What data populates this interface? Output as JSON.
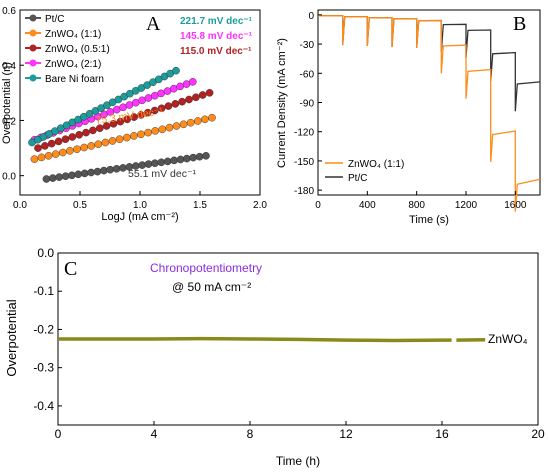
{
  "chart_data": [
    {
      "panel": "A",
      "type": "scatter",
      "title": "",
      "xlabel": "LogJ (mA cm⁻²)",
      "ylabel": "Overpotential (η)",
      "xlim": [
        0.0,
        2.0
      ],
      "ylim": [
        -0.07,
        0.6
      ],
      "xticks": [
        "0.0",
        "0.5",
        "1.0",
        "1.5",
        "2.0"
      ],
      "yticks": [
        "0.0",
        "0.2",
        "0.4",
        "0.6"
      ],
      "legend_position": "top-left",
      "series": [
        {
          "name": "Pt/C",
          "color": "#555555",
          "x_start": 0.22,
          "x_end": 1.55,
          "y_start": -0.012,
          "y_end": 0.072
        },
        {
          "name": "ZnWO₄ (1:1)",
          "color": "#ff8c1a",
          "x_start": 0.12,
          "x_end": 1.6,
          "y_start": 0.06,
          "y_end": 0.21
        },
        {
          "name": "ZnWO₄ (0.5:1)",
          "color": "#b22222",
          "x_start": 0.15,
          "x_end": 1.58,
          "y_start": 0.1,
          "y_end": 0.3
        },
        {
          "name": "ZnWO₄ (2:1)",
          "color": "#ff33ff",
          "x_start": 0.12,
          "x_end": 1.44,
          "y_start": 0.13,
          "y_end": 0.34
        },
        {
          "name": "Bare Ni foarn",
          "color": "#1e9c9c",
          "x_start": 0.1,
          "x_end": 1.3,
          "y_start": 0.12,
          "y_end": 0.38
        }
      ],
      "annotations": [
        {
          "text": "221.7 mV dec⁻¹",
          "color": "#1e9c9c"
        },
        {
          "text": "145.8 mV dec⁻¹",
          "color": "#ff33ff"
        },
        {
          "text": "115.0 mV dec⁻¹",
          "color": "#b22222"
        },
        {
          "text": "75.3 mV dec⁻¹",
          "color": "#ff8c1a"
        },
        {
          "text": "55.1 mV dec⁻¹",
          "color": "#333333"
        }
      ],
      "panel_label": "A"
    },
    {
      "panel": "B",
      "type": "line",
      "title": "",
      "xlabel": "Time (s)",
      "ylabel": "Current Density (mA cm⁻²)",
      "xlim": [
        0,
        1800
      ],
      "ylim": [
        -185,
        5
      ],
      "xticks": [
        "0",
        "400",
        "800",
        "1200",
        "1600"
      ],
      "yticks": [
        "0",
        "-30",
        "-60",
        "-90",
        "-120",
        "-150",
        "-180"
      ],
      "legend_position": "bottom-left",
      "series": [
        {
          "name": "ZnWO₄ (1:1)",
          "color": "#ff8c1a",
          "steps": [
            {
              "x0": 0,
              "x1": 200,
              "level": -1
            },
            {
              "x0": 200,
              "x1": 400,
              "level": -2
            },
            {
              "x0": 400,
              "x1": 600,
              "level": -3
            },
            {
              "x0": 600,
              "x1": 800,
              "level": -4
            },
            {
              "x0": 800,
              "x1": 1000,
              "level": -6
            },
            {
              "x0": 1000,
              "x1": 1200,
              "level": -32
            },
            {
              "x0": 1200,
              "x1": 1400,
              "level": -58
            },
            {
              "x0": 1400,
              "x1": 1600,
              "level": -123
            },
            {
              "x0": 1600,
              "x1": 1800,
              "level": -174
            }
          ]
        },
        {
          "name": "Pt/C",
          "color": "#333333",
          "steps": [
            {
              "x0": 0,
              "x1": 200,
              "level": -1
            },
            {
              "x0": 200,
              "x1": 400,
              "level": -2
            },
            {
              "x0": 400,
              "x1": 600,
              "level": -3
            },
            {
              "x0": 600,
              "x1": 800,
              "level": -4
            },
            {
              "x0": 800,
              "x1": 1000,
              "level": -6
            },
            {
              "x0": 1000,
              "x1": 1200,
              "level": -10
            },
            {
              "x0": 1200,
              "x1": 1400,
              "level": -16
            },
            {
              "x0": 1400,
              "x1": 1600,
              "level": -40
            },
            {
              "x0": 1600,
              "x1": 1800,
              "level": -71
            }
          ]
        }
      ],
      "panel_label": "B"
    },
    {
      "panel": "C",
      "type": "line",
      "title": "",
      "xlabel": "Time (h)",
      "ylabel": "Overpotential",
      "xlim": [
        0,
        20
      ],
      "ylim": [
        -0.45,
        0.0
      ],
      "xticks": [
        "0",
        "4",
        "8",
        "12",
        "16",
        "20"
      ],
      "yticks": [
        "0.0",
        "-0.1",
        "-0.2",
        "-0.3",
        "-0.4"
      ],
      "series": [
        {
          "name": "ZnWO₄",
          "color": "#8a8a1a",
          "x": [
            0,
            2,
            4,
            6,
            8,
            10,
            12,
            14,
            16,
            16.4,
            16.6,
            17.8
          ],
          "y": [
            -0.225,
            -0.225,
            -0.225,
            -0.224,
            -0.225,
            -0.226,
            -0.228,
            -0.229,
            -0.228,
            -0.228,
            -0.228,
            -0.227
          ]
        }
      ],
      "annotations": [
        {
          "text": "Chronopotentiometry",
          "color": "#8a2be2"
        },
        {
          "text": "@ 50 mA cm⁻²",
          "color": "#000000"
        }
      ],
      "panel_label": "C"
    }
  ]
}
